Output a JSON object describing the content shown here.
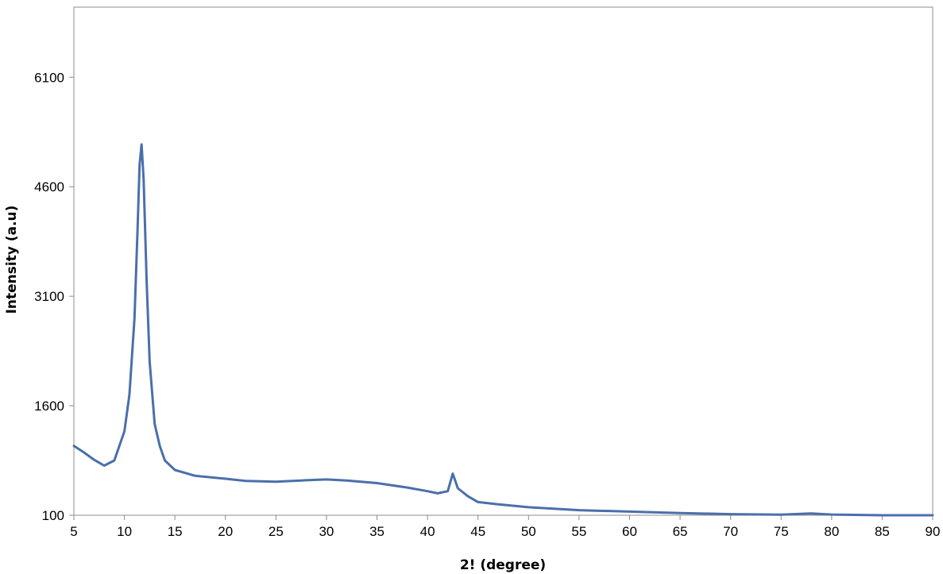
{
  "chart_data": {
    "type": "line",
    "title": "",
    "xlabel": "2! (degree)",
    "ylabel": "Intensity (a.u)",
    "xlim": [
      5,
      90
    ],
    "ylim": [
      100,
      6100
    ],
    "ymax_display": 7060,
    "x_ticks": [
      5,
      10,
      15,
      20,
      25,
      30,
      35,
      40,
      45,
      50,
      55,
      60,
      65,
      70,
      75,
      80,
      85,
      90
    ],
    "x_tick_labels": [
      "5",
      "10",
      "15",
      "20",
      "25",
      "30",
      "35",
      "40",
      "45",
      "50",
      "55",
      "60",
      "65",
      "70",
      "75",
      "80",
      "85",
      "90"
    ],
    "y_ticks": [
      100,
      1600,
      3100,
      4600,
      6100
    ],
    "y_tick_labels": [
      "100",
      "1600",
      "3100",
      "4600",
      "6100"
    ],
    "grid": false,
    "legend": "none",
    "series_color": "#4a6fab",
    "series": [
      {
        "x": [
          5,
          6,
          7,
          8,
          9,
          10,
          10.5,
          11,
          11.3,
          11.5,
          11.7,
          11.9,
          12.2,
          12.5,
          13,
          13.5,
          14,
          15,
          17,
          20,
          22,
          25,
          28,
          30,
          32,
          35,
          38,
          40,
          41,
          42,
          42.5,
          43,
          44,
          45,
          47,
          50,
          55,
          60,
          65,
          70,
          75,
          78,
          80,
          85,
          90
        ],
        "y": [
          1050,
          960,
          860,
          780,
          850,
          1250,
          1750,
          2800,
          4000,
          4900,
          5180,
          4700,
          3300,
          2200,
          1350,
          1050,
          850,
          720,
          640,
          600,
          570,
          560,
          580,
          590,
          575,
          540,
          480,
          430,
          400,
          430,
          670,
          470,
          360,
          280,
          250,
          210,
          170,
          150,
          130,
          115,
          108,
          125,
          110,
          100,
          100
        ]
      }
    ]
  }
}
